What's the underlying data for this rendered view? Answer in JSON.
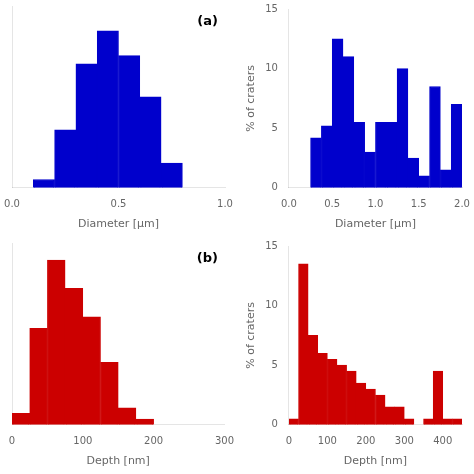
{
  "chart_data": [
    {
      "type": "histogram",
      "bins": [
        0.1,
        0.2,
        0.3,
        0.4,
        0.5,
        0.6,
        0.7,
        0.8
      ],
      "values": [
        0.5,
        3.5,
        7.5,
        9.5,
        8.0,
        5.5,
        1.5
      ],
      "color": "#0000CC",
      "xlabel": "Diameter [μm]",
      "xlim": [
        0,
        1
      ],
      "xticks": [
        {
          "value": 0,
          "label": "0.0"
        },
        {
          "value": 0.5,
          "label": "0.5"
        },
        {
          "value": 1.0,
          "label": "1.0"
        }
      ],
      "ylim": [
        0,
        11
      ],
      "tick_labels": "x",
      "grid": false,
      "annotation": "(a)"
    },
    {
      "type": "histogram",
      "bins": [
        0.25,
        0.375,
        0.5,
        0.625,
        0.75,
        0.875,
        1.0,
        1.125,
        1.25,
        1.375,
        1.5,
        1.625,
        1.75,
        1.875,
        2.0
      ],
      "values": [
        4.2,
        5.2,
        12.5,
        11.0,
        5.5,
        3.0,
        5.5,
        5.5,
        10.0,
        2.5,
        1.0,
        8.5,
        1.5,
        7.0
      ],
      "color": "#0000CC",
      "xlabel": "Diameter [μm]",
      "ylabel": "% of craters",
      "xlim": [
        0,
        2.0
      ],
      "xticks": [
        {
          "value": 0,
          "label": "0.0"
        },
        {
          "value": 0.5,
          "label": "0.5"
        },
        {
          "value": 1.0,
          "label": "1.0"
        },
        {
          "value": 1.5,
          "label": "1.5"
        },
        {
          "value": 2.0,
          "label": "2.0"
        }
      ],
      "ylim": [
        0,
        15
      ],
      "yticks": [
        0,
        5,
        10,
        15
      ],
      "grid": false
    },
    {
      "type": "histogram",
      "bins": [
        0,
        25,
        50,
        75,
        100,
        125,
        150,
        175,
        200
      ],
      "values": [
        1.0,
        8.5,
        14.5,
        12.0,
        9.5,
        5.5,
        1.5,
        0.5
      ],
      "color": "#CC0000",
      "xlabel": "Depth [nm]",
      "xlim": [
        0,
        300
      ],
      "xticks": [
        0,
        100,
        200,
        300
      ],
      "ylim": [
        0,
        16
      ],
      "tick_labels": "x",
      "grid": false,
      "annotation": "(b)"
    },
    {
      "type": "histogram",
      "bins": [
        0,
        25,
        50,
        75,
        100,
        125,
        150,
        175,
        200,
        225,
        250,
        275,
        300,
        325,
        350,
        375,
        400,
        425,
        450
      ],
      "values": [
        0.5,
        13.5,
        7.5,
        6.0,
        5.5,
        5.0,
        4.5,
        3.5,
        3.0,
        2.5,
        1.5,
        1.5,
        0.5,
        0.0,
        0.5,
        4.5,
        0.5,
        0.5
      ],
      "color": "#CC0000",
      "xlabel": "Depth [nm]",
      "ylabel": "% of craters",
      "xlim": [
        0,
        450
      ],
      "xticks": [
        0,
        100,
        200,
        300,
        400
      ],
      "ylim": [
        0,
        15
      ],
      "yticks": [
        0,
        5,
        10,
        15
      ],
      "grid": false
    }
  ]
}
